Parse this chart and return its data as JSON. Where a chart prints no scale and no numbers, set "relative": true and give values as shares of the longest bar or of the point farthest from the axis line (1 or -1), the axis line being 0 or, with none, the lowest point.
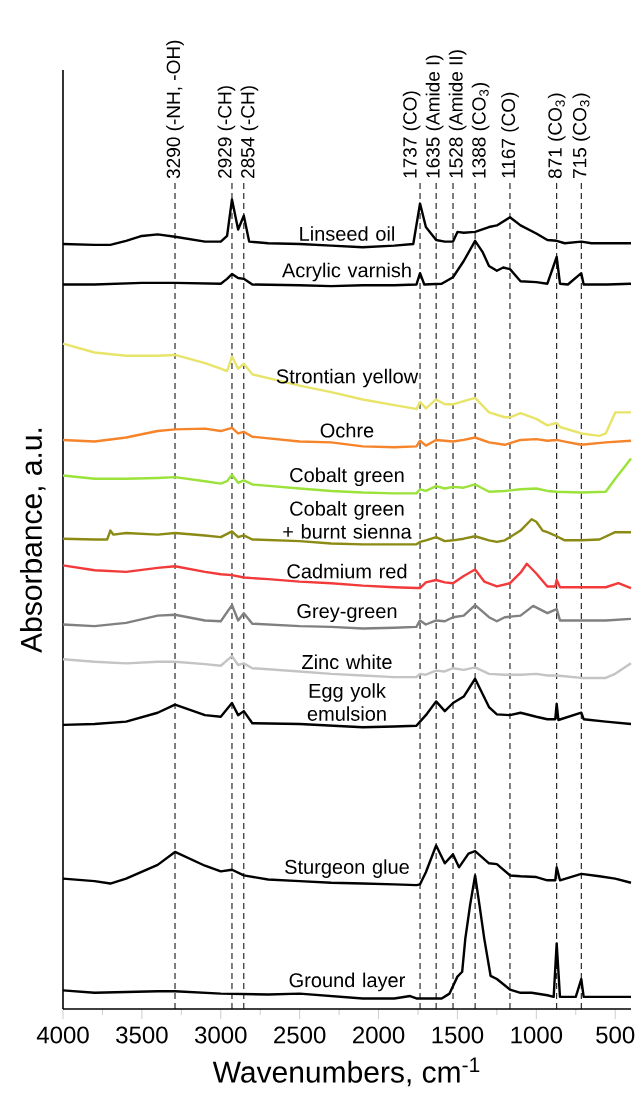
{
  "chart_data": {
    "type": "line",
    "relative": true,
    "tick_labels": "x",
    "xlabel": "Wavenumbers, cm$^{-1}$",
    "ylabel": "Absorbance, a.u.",
    "xlim": [
      4000,
      400
    ],
    "xticks": [
      4000,
      3500,
      3000,
      2500,
      2000,
      1500,
      1000,
      500
    ],
    "ref_lines": [
      {
        "axis": "x",
        "value": 3290,
        "label": "3290 (-NH, -OH)",
        "color": "#000000",
        "line_style": "dashed"
      },
      {
        "axis": "x",
        "value": 2929,
        "label": "2929 (-CH)",
        "color": "#000000",
        "line_style": "dashed"
      },
      {
        "axis": "x",
        "value": 2854,
        "label": "2854 (-CH)",
        "color": "#000000",
        "line_style": "dashed"
      },
      {
        "axis": "x",
        "value": 1737,
        "label": "1737 (CO)",
        "color": "#000000",
        "line_style": "dashed"
      },
      {
        "axis": "x",
        "value": 1635,
        "label": "1635 (Amide I)",
        "color": "#000000",
        "line_style": "dashed"
      },
      {
        "axis": "x",
        "value": 1528,
        "label": "1528 (Amide II)",
        "color": "#000000",
        "line_style": "dashed"
      },
      {
        "axis": "x",
        "value": 1388,
        "label": "1388 (CO$_{3}$)",
        "color": "#000000",
        "line_style": "dashed"
      },
      {
        "axis": "x",
        "value": 1167,
        "label": "1167 (CO)",
        "color": "#000000",
        "line_style": "dashed"
      },
      {
        "axis": "x",
        "value": 871,
        "label": "871 (CO$_{3}$)",
        "color": "#000000",
        "line_style": "dashed"
      },
      {
        "axis": "x",
        "value": 715,
        "label": "715 (CO$_{3}$)",
        "color": "#000000",
        "line_style": "dashed"
      }
    ],
    "series": [
      {
        "name": "Linseed oil",
        "color": "#000000",
        "x": [
          4000,
          3800,
          3700,
          3600,
          3500,
          3400,
          3290,
          3100,
          3000,
          2960,
          2929,
          2890,
          2854,
          2820,
          2700,
          2500,
          2300,
          2100,
          1900,
          1780,
          1737,
          1700,
          1635,
          1580,
          1528,
          1500,
          1460,
          1388,
          1300,
          1250,
          1167,
          1100,
          1000,
          930,
          871,
          820,
          715,
          650,
          560,
          480,
          400
        ],
        "values": [
          0.945,
          0.944,
          0.944,
          0.949,
          0.955,
          0.957,
          0.954,
          0.948,
          0.948,
          0.955,
          1.0,
          0.963,
          0.98,
          0.948,
          0.946,
          0.945,
          0.943,
          0.941,
          0.943,
          0.945,
          0.995,
          0.966,
          0.95,
          0.948,
          0.948,
          0.96,
          0.959,
          0.96,
          0.966,
          0.968,
          0.978,
          0.968,
          0.958,
          0.95,
          0.949,
          0.946,
          0.948,
          0.946,
          0.946,
          0.946,
          0.946
        ]
      },
      {
        "name": "Acrylic varnish",
        "color": "#000000",
        "x": [
          4000,
          3800,
          3500,
          3290,
          3000,
          2960,
          2929,
          2890,
          2854,
          2800,
          2500,
          2300,
          2100,
          1900,
          1760,
          1737,
          1710,
          1600,
          1528,
          1460,
          1388,
          1340,
          1300,
          1250,
          1210,
          1167,
          1100,
          1000,
          930,
          871,
          850,
          800,
          715,
          700,
          550,
          400
        ],
        "values": [
          0.895,
          0.895,
          0.897,
          0.897,
          0.896,
          0.902,
          0.908,
          0.903,
          0.902,
          0.895,
          0.894,
          0.893,
          0.894,
          0.894,
          0.895,
          0.909,
          0.895,
          0.896,
          0.904,
          0.924,
          0.949,
          0.935,
          0.918,
          0.912,
          0.916,
          0.914,
          0.899,
          0.898,
          0.896,
          0.929,
          0.896,
          0.895,
          0.909,
          0.895,
          0.895,
          0.896
        ]
      },
      {
        "name": "Strontian yellow",
        "color": "#e8e46a",
        "x": [
          4000,
          3800,
          3600,
          3400,
          3290,
          3100,
          3000,
          2960,
          2929,
          2890,
          2854,
          2800,
          2500,
          2300,
          2100,
          1900,
          1780,
          1760,
          1737,
          1700,
          1635,
          1580,
          1528,
          1460,
          1388,
          1300,
          1200,
          1167,
          1100,
          1000,
          930,
          871,
          850,
          715,
          600,
          560,
          500,
          400
        ],
        "values": [
          0.822,
          0.811,
          0.807,
          0.807,
          0.808,
          0.798,
          0.791,
          0.788,
          0.806,
          0.791,
          0.797,
          0.784,
          0.77,
          0.762,
          0.753,
          0.746,
          0.742,
          0.741,
          0.75,
          0.742,
          0.753,
          0.747,
          0.747,
          0.751,
          0.755,
          0.737,
          0.731,
          0.731,
          0.736,
          0.729,
          0.721,
          0.724,
          0.719,
          0.711,
          0.708,
          0.711,
          0.737,
          0.737
        ]
      },
      {
        "name": "Ochre",
        "color": "#f5842a",
        "x": [
          4000,
          3800,
          3600,
          3400,
          3290,
          3100,
          3000,
          2929,
          2890,
          2854,
          2800,
          2500,
          2300,
          2100,
          1900,
          1760,
          1737,
          1700,
          1635,
          1580,
          1528,
          1460,
          1388,
          1300,
          1200,
          1100,
          1000,
          930,
          871,
          820,
          715,
          560,
          400
        ],
        "values": [
          0.703,
          0.701,
          0.706,
          0.714,
          0.716,
          0.717,
          0.714,
          0.718,
          0.711,
          0.713,
          0.707,
          0.701,
          0.7,
          0.695,
          0.694,
          0.695,
          0.702,
          0.696,
          0.703,
          0.702,
          0.701,
          0.703,
          0.706,
          0.7,
          0.697,
          0.703,
          0.704,
          0.702,
          0.703,
          0.701,
          0.697,
          0.7,
          0.702
        ]
      },
      {
        "name": "Cobalt green",
        "color": "#9be23a",
        "x": [
          4000,
          3800,
          3600,
          3400,
          3290,
          3100,
          3000,
          2960,
          2929,
          2890,
          2854,
          2800,
          2500,
          2300,
          2100,
          1900,
          1760,
          1737,
          1700,
          1635,
          1580,
          1528,
          1460,
          1388,
          1300,
          1200,
          1100,
          1000,
          930,
          871,
          715,
          560,
          500,
          440,
          400
        ],
        "values": [
          0.659,
          0.655,
          0.655,
          0.656,
          0.657,
          0.652,
          0.649,
          0.652,
          0.66,
          0.65,
          0.653,
          0.648,
          0.643,
          0.64,
          0.638,
          0.637,
          0.637,
          0.642,
          0.64,
          0.646,
          0.643,
          0.645,
          0.644,
          0.648,
          0.639,
          0.64,
          0.642,
          0.643,
          0.64,
          0.639,
          0.638,
          0.639,
          0.655,
          0.67,
          0.68
        ]
      },
      {
        "name": "Cobalt green + burnt sienna",
        "color": "#8a8a14",
        "x": [
          4000,
          3800,
          3720,
          3700,
          3680,
          3600,
          3400,
          3290,
          3100,
          3000,
          2929,
          2890,
          2854,
          2800,
          2500,
          2300,
          2100,
          1900,
          1760,
          1737,
          1700,
          1635,
          1580,
          1528,
          1460,
          1388,
          1300,
          1250,
          1200,
          1100,
          1030,
          1000,
          960,
          930,
          871,
          820,
          715,
          600,
          500,
          400
        ],
        "values": [
          0.581,
          0.58,
          0.58,
          0.591,
          0.586,
          0.588,
          0.586,
          0.588,
          0.585,
          0.583,
          0.59,
          0.583,
          0.585,
          0.58,
          0.578,
          0.575,
          0.574,
          0.574,
          0.574,
          0.577,
          0.579,
          0.583,
          0.578,
          0.579,
          0.581,
          0.584,
          0.579,
          0.577,
          0.579,
          0.591,
          0.605,
          0.602,
          0.591,
          0.589,
          0.584,
          0.579,
          0.579,
          0.58,
          0.589,
          0.589
        ]
      },
      {
        "name": "Cadmium red",
        "color": "#f23a3a",
        "x": [
          4000,
          3800,
          3600,
          3400,
          3290,
          3100,
          3000,
          2929,
          2854,
          2700,
          2500,
          2300,
          2100,
          1900,
          1760,
          1737,
          1700,
          1635,
          1580,
          1528,
          1460,
          1388,
          1330,
          1250,
          1167,
          1100,
          1060,
          1000,
          930,
          880,
          871,
          850,
          715,
          560,
          480,
          400
        ],
        "values": [
          0.548,
          0.542,
          0.54,
          0.545,
          0.547,
          0.54,
          0.537,
          0.536,
          0.533,
          0.531,
          0.528,
          0.526,
          0.523,
          0.521,
          0.52,
          0.52,
          0.527,
          0.53,
          0.527,
          0.526,
          0.535,
          0.543,
          0.528,
          0.522,
          0.526,
          0.539,
          0.55,
          0.538,
          0.522,
          0.522,
          0.53,
          0.521,
          0.521,
          0.521,
          0.526,
          0.52
        ]
      },
      {
        "name": "Grey-green",
        "color": "#808080",
        "x": [
          4000,
          3800,
          3600,
          3400,
          3290,
          3100,
          3000,
          2929,
          2890,
          2854,
          2800,
          2500,
          2300,
          2100,
          1900,
          1760,
          1737,
          1700,
          1635,
          1580,
          1528,
          1460,
          1388,
          1300,
          1250,
          1200,
          1100,
          1020,
          930,
          871,
          850,
          715,
          560,
          400
        ],
        "values": [
          0.475,
          0.473,
          0.477,
          0.486,
          0.487,
          0.48,
          0.479,
          0.499,
          0.48,
          0.489,
          0.476,
          0.473,
          0.472,
          0.47,
          0.471,
          0.472,
          0.48,
          0.475,
          0.48,
          0.479,
          0.484,
          0.486,
          0.499,
          0.484,
          0.479,
          0.484,
          0.486,
          0.498,
          0.489,
          0.494,
          0.48,
          0.48,
          0.48,
          0.482
        ]
      },
      {
        "name": "Zinc white",
        "color": "#c4c4c4",
        "x": [
          4000,
          3800,
          3600,
          3400,
          3290,
          3100,
          3000,
          2929,
          2890,
          2854,
          2800,
          2500,
          2300,
          2100,
          1900,
          1760,
          1737,
          1700,
          1635,
          1580,
          1528,
          1460,
          1388,
          1300,
          1200,
          1100,
          1000,
          930,
          871,
          715,
          560,
          500,
          400
        ],
        "values": [
          0.432,
          0.429,
          0.427,
          0.429,
          0.429,
          0.426,
          0.424,
          0.436,
          0.425,
          0.427,
          0.421,
          0.417,
          0.414,
          0.412,
          0.41,
          0.41,
          0.414,
          0.413,
          0.418,
          0.417,
          0.421,
          0.419,
          0.422,
          0.414,
          0.413,
          0.413,
          0.414,
          0.412,
          0.412,
          0.409,
          0.409,
          0.414,
          0.427
        ]
      },
      {
        "name": "Egg yolk emulsion",
        "color": "#000000",
        "x": [
          4000,
          3800,
          3600,
          3400,
          3290,
          3100,
          3000,
          2929,
          2890,
          2854,
          2800,
          2500,
          2300,
          2100,
          1900,
          1760,
          1737,
          1700,
          1635,
          1580,
          1528,
          1460,
          1388,
          1300,
          1250,
          1167,
          1100,
          1000,
          930,
          880,
          871,
          860,
          715,
          700,
          560,
          400
        ],
        "values": [
          0.351,
          0.352,
          0.355,
          0.366,
          0.376,
          0.363,
          0.361,
          0.378,
          0.363,
          0.368,
          0.353,
          0.352,
          0.35,
          0.348,
          0.349,
          0.35,
          0.355,
          0.363,
          0.38,
          0.368,
          0.378,
          0.386,
          0.408,
          0.373,
          0.364,
          0.363,
          0.366,
          0.361,
          0.358,
          0.358,
          0.377,
          0.357,
          0.366,
          0.358,
          0.355,
          0.352
        ]
      },
      {
        "name": "Sturgeon glue",
        "color": "#000000",
        "x": [
          4000,
          3800,
          3700,
          3600,
          3400,
          3290,
          3100,
          3000,
          2929,
          2854,
          2700,
          2500,
          2300,
          2100,
          1900,
          1760,
          1737,
          1700,
          1635,
          1580,
          1528,
          1490,
          1430,
          1388,
          1300,
          1250,
          1167,
          1100,
          1000,
          930,
          880,
          871,
          850,
          715,
          600,
          500,
          400
        ],
        "values": [
          0.161,
          0.158,
          0.155,
          0.161,
          0.178,
          0.194,
          0.177,
          0.17,
          0.172,
          0.165,
          0.16,
          0.158,
          0.156,
          0.155,
          0.154,
          0.153,
          0.154,
          0.169,
          0.202,
          0.18,
          0.191,
          0.175,
          0.192,
          0.195,
          0.18,
          0.179,
          0.165,
          0.164,
          0.163,
          0.159,
          0.159,
          0.175,
          0.159,
          0.167,
          0.164,
          0.161,
          0.156
        ]
      },
      {
        "name": "Ground layer",
        "color": "#000000",
        "x": [
          4000,
          3800,
          3600,
          3400,
          3290,
          3000,
          2700,
          2500,
          2300,
          2100,
          1900,
          1800,
          1760,
          1600,
          1550,
          1500,
          1470,
          1450,
          1420,
          1388,
          1360,
          1330,
          1290,
          1250,
          1167,
          1100,
          1030,
          930,
          890,
          871,
          850,
          750,
          715,
          700,
          560,
          400
        ],
        "values": [
          0.023,
          0.02,
          0.021,
          0.022,
          0.022,
          0.019,
          0.018,
          0.019,
          0.016,
          0.013,
          0.013,
          0.016,
          0.013,
          0.013,
          0.019,
          0.04,
          0.046,
          0.087,
          0.128,
          0.165,
          0.128,
          0.087,
          0.041,
          0.037,
          0.024,
          0.02,
          0.02,
          0.017,
          0.015,
          0.081,
          0.015,
          0.015,
          0.037,
          0.015,
          0.015,
          0.015
        ]
      }
    ]
  }
}
